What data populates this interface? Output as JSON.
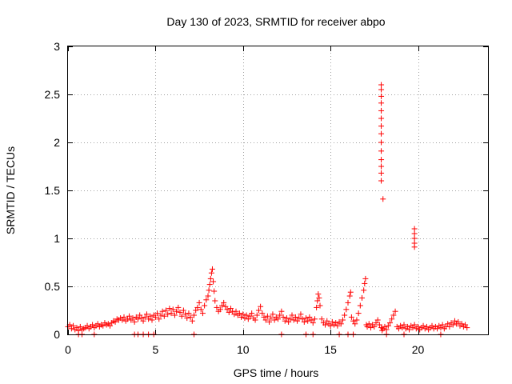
{
  "chart_data": {
    "type": "scatter",
    "title": "Day 130 of 2023, SRMTID for receiver abpo",
    "xlabel": "GPS time / hours",
    "ylabel": "SRMTID / TECUs",
    "xlim": [
      0,
      24
    ],
    "ylim": [
      0,
      3
    ],
    "xticks": [
      0,
      5,
      10,
      15,
      20
    ],
    "xtick_labels": [
      "0",
      "5",
      "10",
      "15",
      "20"
    ],
    "yticks": [
      0,
      0.5,
      1,
      1.5,
      2,
      2.5,
      3
    ],
    "ytick_labels": [
      "0",
      "0.5",
      "1",
      "1.5",
      "2",
      "2.5",
      "3"
    ],
    "grid": true,
    "marker": "+",
    "color": "#ff0000",
    "series": [
      {
        "name": "SRMTID",
        "points": [
          [
            0.0,
            0.08
          ],
          [
            0.1,
            0.1
          ],
          [
            0.2,
            0.06
          ],
          [
            0.3,
            0.09
          ],
          [
            0.4,
            0.05
          ],
          [
            0.5,
            0.07
          ],
          [
            0.6,
            0.04
          ],
          [
            0.7,
            0.08
          ],
          [
            0.8,
            0.05
          ],
          [
            0.9,
            0.06
          ],
          [
            1.0,
            0.07
          ],
          [
            1.1,
            0.09
          ],
          [
            1.2,
            0.06
          ],
          [
            1.3,
            0.08
          ],
          [
            1.4,
            0.1
          ],
          [
            1.5,
            0.07
          ],
          [
            1.6,
            0.09
          ],
          [
            1.7,
            0.11
          ],
          [
            1.8,
            0.08
          ],
          [
            1.9,
            0.1
          ],
          [
            2.0,
            0.09
          ],
          [
            2.1,
            0.12
          ],
          [
            2.2,
            0.1
          ],
          [
            2.3,
            0.11
          ],
          [
            2.4,
            0.09
          ],
          [
            2.5,
            0.12
          ],
          [
            2.6,
            0.14
          ],
          [
            2.7,
            0.13
          ],
          [
            2.8,
            0.16
          ],
          [
            2.9,
            0.15
          ],
          [
            3.0,
            0.17
          ],
          [
            3.1,
            0.15
          ],
          [
            3.2,
            0.18
          ],
          [
            3.3,
            0.14
          ],
          [
            3.4,
            0.16
          ],
          [
            3.5,
            0.19
          ],
          [
            3.6,
            0.15
          ],
          [
            3.7,
            0.17
          ],
          [
            3.8,
            0.13
          ],
          [
            3.9,
            0.18
          ],
          [
            4.0,
            0.16
          ],
          [
            4.1,
            0.2
          ],
          [
            4.2,
            0.17
          ],
          [
            4.3,
            0.14
          ],
          [
            4.4,
            0.18
          ],
          [
            4.5,
            0.21
          ],
          [
            4.6,
            0.16
          ],
          [
            4.7,
            0.19
          ],
          [
            4.8,
            0.15
          ],
          [
            4.9,
            0.2
          ],
          [
            5.0,
            0.18
          ],
          [
            5.1,
            0.22
          ],
          [
            5.2,
            0.16
          ],
          [
            5.3,
            0.2
          ],
          [
            5.4,
            0.24
          ],
          [
            5.5,
            0.19
          ],
          [
            5.6,
            0.25
          ],
          [
            5.7,
            0.21
          ],
          [
            5.8,
            0.27
          ],
          [
            5.9,
            0.22
          ],
          [
            6.0,
            0.26
          ],
          [
            6.1,
            0.2
          ],
          [
            6.2,
            0.24
          ],
          [
            6.3,
            0.28
          ],
          [
            6.4,
            0.23
          ],
          [
            6.5,
            0.19
          ],
          [
            6.6,
            0.25
          ],
          [
            6.7,
            0.21
          ],
          [
            6.8,
            0.17
          ],
          [
            6.9,
            0.22
          ],
          [
            7.0,
            0.18
          ],
          [
            7.1,
            0.14
          ],
          [
            7.2,
            0.2
          ],
          [
            7.3,
            0.25
          ],
          [
            7.4,
            0.28
          ],
          [
            7.5,
            0.33
          ],
          [
            7.6,
            0.26
          ],
          [
            7.7,
            0.22
          ],
          [
            7.8,
            0.3
          ],
          [
            7.9,
            0.36
          ],
          [
            8.0,
            0.4
          ],
          [
            8.05,
            0.46
          ],
          [
            8.1,
            0.52
          ],
          [
            8.15,
            0.58
          ],
          [
            8.2,
            0.64
          ],
          [
            8.25,
            0.68
          ],
          [
            8.3,
            0.55
          ],
          [
            8.35,
            0.45
          ],
          [
            8.4,
            0.35
          ],
          [
            8.5,
            0.28
          ],
          [
            8.6,
            0.24
          ],
          [
            8.7,
            0.26
          ],
          [
            8.8,
            0.3
          ],
          [
            8.9,
            0.33
          ],
          [
            9.0,
            0.29
          ],
          [
            9.1,
            0.26
          ],
          [
            9.2,
            0.23
          ],
          [
            9.3,
            0.27
          ],
          [
            9.4,
            0.24
          ],
          [
            9.5,
            0.21
          ],
          [
            9.6,
            0.24
          ],
          [
            9.7,
            0.2
          ],
          [
            9.8,
            0.22
          ],
          [
            9.9,
            0.18
          ],
          [
            10.0,
            0.21
          ],
          [
            10.1,
            0.17
          ],
          [
            10.2,
            0.2
          ],
          [
            10.3,
            0.16
          ],
          [
            10.4,
            0.19
          ],
          [
            10.5,
            0.22
          ],
          [
            10.6,
            0.17
          ],
          [
            10.7,
            0.15
          ],
          [
            10.8,
            0.2
          ],
          [
            10.9,
            0.25
          ],
          [
            11.0,
            0.29
          ],
          [
            11.1,
            0.22
          ],
          [
            11.2,
            0.18
          ],
          [
            11.3,
            0.15
          ],
          [
            11.4,
            0.19
          ],
          [
            11.5,
            0.13
          ],
          [
            11.6,
            0.17
          ],
          [
            11.7,
            0.21
          ],
          [
            11.8,
            0.15
          ],
          [
            11.9,
            0.18
          ],
          [
            12.0,
            0.16
          ],
          [
            12.1,
            0.2
          ],
          [
            12.2,
            0.24
          ],
          [
            12.3,
            0.18
          ],
          [
            12.4,
            0.14
          ],
          [
            12.5,
            0.17
          ],
          [
            12.6,
            0.13
          ],
          [
            12.7,
            0.16
          ],
          [
            12.8,
            0.2
          ],
          [
            12.9,
            0.15
          ],
          [
            13.0,
            0.18
          ],
          [
            13.1,
            0.14
          ],
          [
            13.2,
            0.17
          ],
          [
            13.3,
            0.21
          ],
          [
            13.4,
            0.16
          ],
          [
            13.5,
            0.13
          ],
          [
            13.6,
            0.17
          ],
          [
            13.7,
            0.14
          ],
          [
            13.8,
            0.18
          ],
          [
            13.9,
            0.15
          ],
          [
            14.0,
            0.12
          ],
          [
            14.1,
            0.16
          ],
          [
            14.2,
            0.28
          ],
          [
            14.25,
            0.35
          ],
          [
            14.3,
            0.42
          ],
          [
            14.35,
            0.38
          ],
          [
            14.4,
            0.3
          ],
          [
            14.5,
            0.16
          ],
          [
            14.6,
            0.12
          ],
          [
            14.7,
            0.1
          ],
          [
            14.8,
            0.14
          ],
          [
            14.9,
            0.11
          ],
          [
            15.0,
            0.09
          ],
          [
            15.1,
            0.13
          ],
          [
            15.2,
            0.1
          ],
          [
            15.3,
            0.12
          ],
          [
            15.4,
            0.09
          ],
          [
            15.5,
            0.13
          ],
          [
            15.6,
            0.11
          ],
          [
            15.7,
            0.15
          ],
          [
            15.8,
            0.2
          ],
          [
            15.9,
            0.26
          ],
          [
            16.0,
            0.33
          ],
          [
            16.1,
            0.4
          ],
          [
            16.15,
            0.44
          ],
          [
            16.2,
            0.18
          ],
          [
            16.3,
            0.14
          ],
          [
            16.4,
            0.11
          ],
          [
            16.5,
            0.15
          ],
          [
            16.6,
            0.22
          ],
          [
            16.7,
            0.3
          ],
          [
            16.8,
            0.38
          ],
          [
            16.9,
            0.46
          ],
          [
            16.95,
            0.53
          ],
          [
            17.0,
            0.58
          ],
          [
            17.05,
            0.1
          ],
          [
            17.1,
            0.08
          ],
          [
            17.2,
            0.11
          ],
          [
            17.3,
            0.07
          ],
          [
            17.4,
            0.1
          ],
          [
            17.5,
            0.08
          ],
          [
            17.6,
            0.12
          ],
          [
            17.7,
            0.15
          ],
          [
            17.8,
            0.1
          ],
          [
            17.9,
            0.07
          ],
          [
            17.95,
            0.04
          ],
          [
            18.0,
            0.06
          ],
          [
            18.1,
            0.08
          ],
          [
            18.2,
            0.05
          ],
          [
            18.3,
            0.09
          ],
          [
            18.4,
            0.12
          ],
          [
            18.5,
            0.16
          ],
          [
            18.6,
            0.2
          ],
          [
            18.7,
            0.24
          ],
          [
            18.8,
            0.08
          ],
          [
            18.9,
            0.06
          ],
          [
            19.0,
            0.09
          ],
          [
            19.1,
            0.07
          ],
          [
            19.2,
            0.1
          ],
          [
            19.3,
            0.06
          ],
          [
            19.4,
            0.08
          ],
          [
            19.5,
            0.05
          ],
          [
            19.6,
            0.09
          ],
          [
            19.7,
            0.07
          ],
          [
            19.8,
            0.1
          ],
          [
            19.9,
            0.06
          ],
          [
            20.0,
            0.08
          ],
          [
            20.1,
            0.05
          ],
          [
            20.2,
            0.07
          ],
          [
            20.3,
            0.09
          ],
          [
            20.4,
            0.06
          ],
          [
            20.5,
            0.08
          ],
          [
            20.6,
            0.05
          ],
          [
            20.7,
            0.07
          ],
          [
            20.8,
            0.09
          ],
          [
            20.9,
            0.06
          ],
          [
            21.0,
            0.08
          ],
          [
            21.1,
            0.06
          ],
          [
            21.2,
            0.09
          ],
          [
            21.3,
            0.07
          ],
          [
            21.4,
            0.1
          ],
          [
            21.5,
            0.06
          ],
          [
            21.6,
            0.08
          ],
          [
            21.7,
            0.11
          ],
          [
            21.8,
            0.08
          ],
          [
            21.9,
            0.12
          ],
          [
            22.0,
            0.1
          ],
          [
            22.1,
            0.14
          ],
          [
            22.2,
            0.11
          ],
          [
            22.3,
            0.13
          ],
          [
            22.4,
            0.09
          ],
          [
            22.5,
            0.11
          ],
          [
            22.6,
            0.08
          ],
          [
            22.7,
            0.1
          ],
          [
            22.8,
            0.07
          ],
          [
            17.9,
            2.6
          ],
          [
            17.9,
            2.55
          ],
          [
            17.9,
            2.48
          ],
          [
            17.9,
            2.41
          ],
          [
            17.9,
            2.33
          ],
          [
            17.9,
            2.25
          ],
          [
            17.9,
            2.17
          ],
          [
            17.9,
            2.09
          ],
          [
            17.9,
            2.0
          ],
          [
            17.9,
            1.91
          ],
          [
            17.9,
            1.82
          ],
          [
            17.9,
            1.75
          ],
          [
            17.9,
            1.68
          ],
          [
            17.9,
            1.6
          ],
          [
            18.0,
            1.41
          ],
          [
            19.8,
            1.1
          ],
          [
            19.8,
            1.05
          ],
          [
            19.8,
            1.0
          ],
          [
            19.8,
            0.95
          ],
          [
            19.8,
            0.91
          ],
          [
            0.6,
            0.0
          ],
          [
            0.8,
            0.0
          ],
          [
            1.5,
            0.0
          ],
          [
            3.8,
            0.0
          ],
          [
            4.0,
            0.0
          ],
          [
            4.3,
            0.0
          ],
          [
            4.6,
            0.0
          ],
          [
            4.9,
            0.0
          ],
          [
            7.2,
            0.0
          ],
          [
            12.2,
            0.0
          ],
          [
            13.6,
            0.0
          ],
          [
            14.0,
            0.0
          ],
          [
            15.5,
            0.0
          ],
          [
            16.0,
            0.0
          ],
          [
            16.3,
            0.0
          ],
          [
            18.2,
            0.0
          ],
          [
            19.2,
            0.0
          ],
          [
            21.3,
            0.0
          ]
        ]
      }
    ]
  }
}
